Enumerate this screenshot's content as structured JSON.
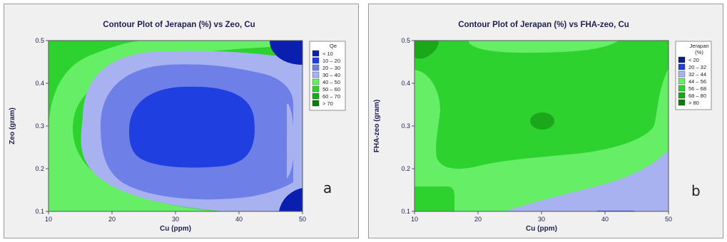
{
  "chart_data": [
    {
      "type": "contour",
      "title": "Contour Plot of Jerapan (%)  vs Zeo, Cu",
      "xlabel": "Cu (ppm)",
      "ylabel": "Zeo (gram)",
      "xlim": [
        10,
        50
      ],
      "ylim": [
        0.1,
        0.5
      ],
      "xticks": [
        "10",
        "20",
        "30",
        "40",
        "50"
      ],
      "yticks": [
        "0.1",
        "0.2",
        "0.3",
        "0.4",
        "0.5"
      ],
      "legend_title": "Qe",
      "legend_placement": "right",
      "levels": [
        {
          "label": "< 10",
          "color": "#0a1fb0"
        },
        {
          "label": "10 – 20",
          "color": "#1f3fe0"
        },
        {
          "label": "20 – 30",
          "color": "#6f7fe8"
        },
        {
          "label": "30 – 40",
          "color": "#a9b2f0"
        },
        {
          "label": "40 – 50",
          "color": "#66ee66"
        },
        {
          "label": "50 – 60",
          "color": "#2ed22e"
        },
        {
          "label": "60 – 70",
          "color": "#1aa81a"
        },
        {
          "label": "> 70",
          "color": "#0d7a0d"
        }
      ],
      "panel_label": "a"
    },
    {
      "type": "contour",
      "title": "Contour Plot of Jerapan (%) vs FHA-zeo, Cu",
      "xlabel": "Cu (ppm)",
      "ylabel": "FHA-zeo (gram)",
      "xlim": [
        10,
        50
      ],
      "ylim": [
        0.1,
        0.5
      ],
      "xticks": [
        "10",
        "20",
        "30",
        "40",
        "50"
      ],
      "yticks": [
        "0.1",
        "0.2",
        "0.3",
        "0.4",
        "0.5"
      ],
      "legend_title": "Jerapan (%)",
      "legend_placement": "right",
      "levels": [
        {
          "label": "< 20",
          "color": "#0a1f8a"
        },
        {
          "label": "20 – 32",
          "color": "#1f3fe0"
        },
        {
          "label": "32 – 44",
          "color": "#a9b2f0"
        },
        {
          "label": "44 – 56",
          "color": "#66ee66"
        },
        {
          "label": "56 – 68",
          "color": "#2ed22e"
        },
        {
          "label": "68 – 80",
          "color": "#1aa81a"
        },
        {
          "label": "> 80",
          "color": "#0d7a0d"
        }
      ],
      "panel_label": "b"
    }
  ]
}
